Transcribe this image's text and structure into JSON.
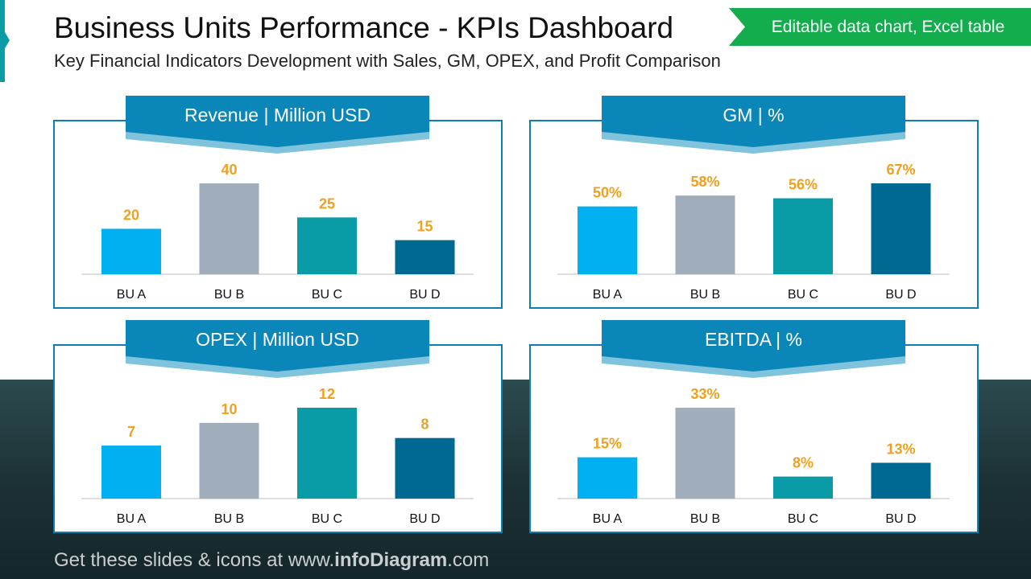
{
  "header": {
    "title": "Business Units Performance - KPIs Dashboard",
    "subtitle": "Key Financial Indicators Development with Sales, GM, OPEX, and Profit Comparison",
    "badge": "Editable data chart, Excel table"
  },
  "footer": {
    "prefix": "Get these slides & icons at www.",
    "brand": "infoDiagram",
    "suffix": ".com"
  },
  "colors": {
    "bars": [
      "#00b0f0",
      "#a0adba",
      "#0a9ca6",
      "#006991"
    ],
    "labels": "#f0a01e",
    "tab": "#0a86b8",
    "tab_shadow": "#7fc4dc",
    "border": "#0a7fb0"
  },
  "chart_data": [
    {
      "type": "bar",
      "title": "Revenue | Million USD",
      "categories": [
        "BU A",
        "BU B",
        "BU C",
        "BU D"
      ],
      "values": [
        20,
        40,
        25,
        15
      ],
      "value_labels": [
        "20",
        "40",
        "25",
        "15"
      ]
    },
    {
      "type": "bar",
      "title": "GM | %",
      "categories": [
        "BU A",
        "BU B",
        "BU C",
        "BU D"
      ],
      "values": [
        50,
        58,
        56,
        67
      ],
      "value_labels": [
        "50%",
        "58%",
        "56%",
        "67%"
      ]
    },
    {
      "type": "bar",
      "title": "OPEX | Million USD",
      "categories": [
        "BU A",
        "BU B",
        "BU C",
        "BU D"
      ],
      "values": [
        7,
        10,
        12,
        8
      ],
      "value_labels": [
        "7",
        "10",
        "12",
        "8"
      ]
    },
    {
      "type": "bar",
      "title": "EBITDA | %",
      "categories": [
        "BU A",
        "BU B",
        "BU C",
        "BU D"
      ],
      "values": [
        15,
        33,
        8,
        13
      ],
      "value_labels": [
        "15%",
        "33%",
        "8%",
        "13%"
      ]
    }
  ]
}
